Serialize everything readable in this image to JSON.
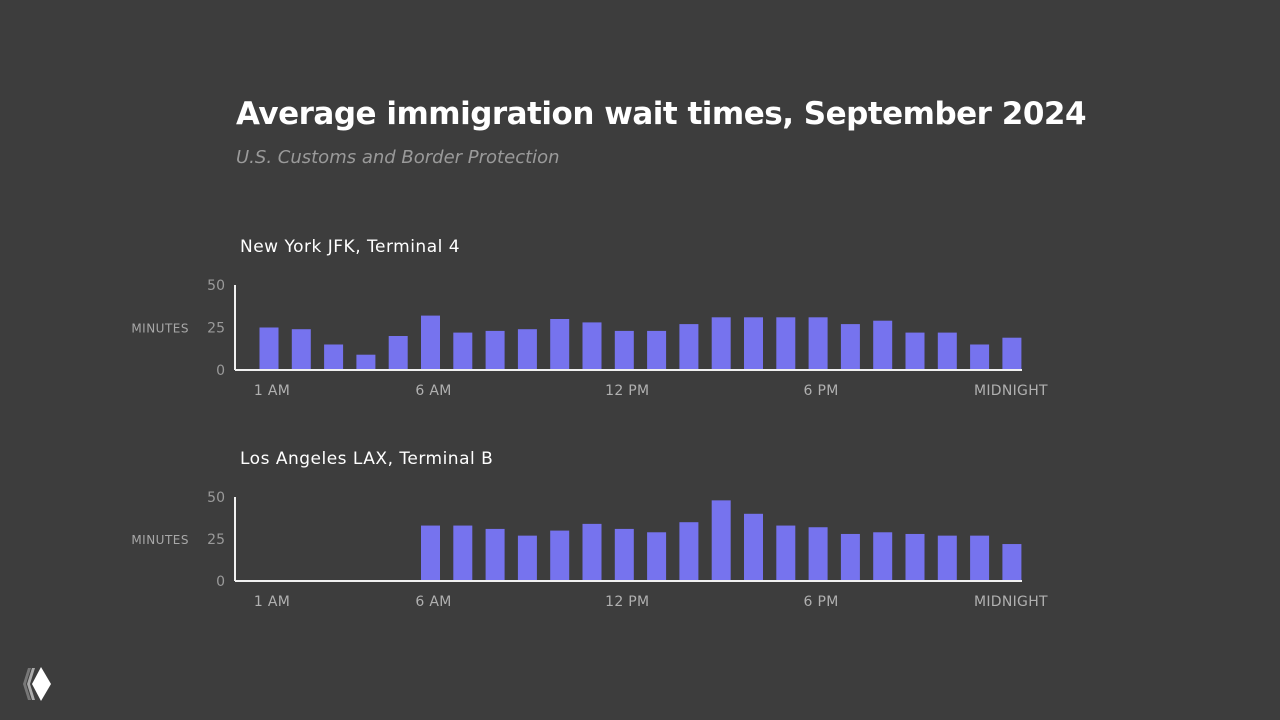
{
  "title": "Average immigration wait times, September 2024",
  "subtitle": "U.S. Customs and Border Protection",
  "bar_color": "#7673ee",
  "background_color": "#3d3d3d",
  "logo": {
    "icon": "layered-diamond-logo"
  },
  "chart_data": [
    {
      "type": "bar",
      "title": "New York JFK, Terminal 4",
      "ylabel": "MINUTES",
      "ylim": [
        0,
        50
      ],
      "yticks": [
        "0",
        "25",
        "50"
      ],
      "grid": false,
      "categories": [
        "1 AM",
        "2 AM",
        "3 AM",
        "4 AM",
        "5 AM",
        "6 AM",
        "7 AM",
        "8 AM",
        "9 AM",
        "10 AM",
        "11 AM",
        "12 PM",
        "1 PM",
        "2 PM",
        "3 PM",
        "4 PM",
        "5 PM",
        "6 PM",
        "7 PM",
        "8 PM",
        "9 PM",
        "10 PM",
        "11 PM",
        "MIDNIGHT"
      ],
      "xtick_labels": [
        {
          "index": 0,
          "label": "1 AM"
        },
        {
          "index": 5,
          "label": "6 AM"
        },
        {
          "index": 11,
          "label": "12 PM"
        },
        {
          "index": 17,
          "label": "6 PM"
        },
        {
          "index": 23,
          "label": "MIDNIGHT"
        }
      ],
      "values": [
        25,
        24,
        15,
        9,
        20,
        32,
        22,
        23,
        24,
        30,
        28,
        23,
        23,
        27,
        31,
        31,
        31,
        31,
        27,
        29,
        22,
        22,
        15,
        19
      ]
    },
    {
      "type": "bar",
      "title": "Los Angeles LAX, Terminal B",
      "ylabel": "MINUTES",
      "ylim": [
        0,
        50
      ],
      "yticks": [
        "0",
        "25",
        "50"
      ],
      "grid": false,
      "categories": [
        "1 AM",
        "2 AM",
        "3 AM",
        "4 AM",
        "5 AM",
        "6 AM",
        "7 AM",
        "8 AM",
        "9 AM",
        "10 AM",
        "11 AM",
        "12 PM",
        "1 PM",
        "2 PM",
        "3 PM",
        "4 PM",
        "5 PM",
        "6 PM",
        "7 PM",
        "8 PM",
        "9 PM",
        "10 PM",
        "11 PM",
        "MIDNIGHT"
      ],
      "xtick_labels": [
        {
          "index": 0,
          "label": "1 AM"
        },
        {
          "index": 5,
          "label": "6 AM"
        },
        {
          "index": 11,
          "label": "12 PM"
        },
        {
          "index": 17,
          "label": "6 PM"
        },
        {
          "index": 23,
          "label": "MIDNIGHT"
        }
      ],
      "values": [
        null,
        null,
        null,
        null,
        null,
        33,
        33,
        31,
        27,
        30,
        34,
        31,
        29,
        35,
        48,
        40,
        33,
        32,
        28,
        29,
        28,
        27,
        27,
        22
      ]
    }
  ]
}
